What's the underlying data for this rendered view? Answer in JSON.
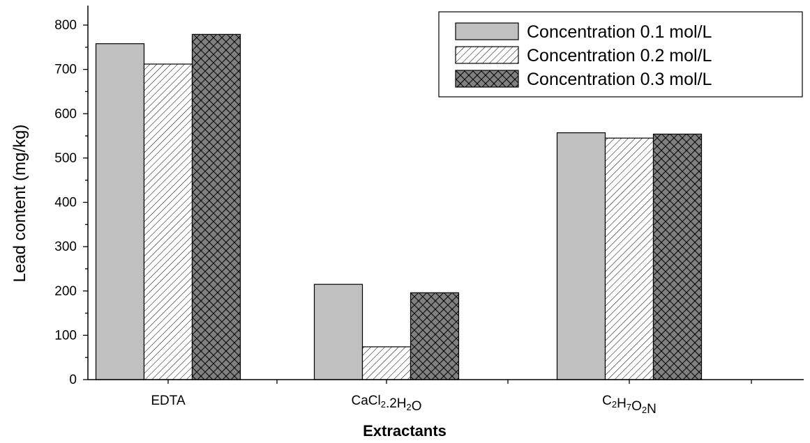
{
  "chart_data": {
    "type": "bar",
    "title": "",
    "xlabel": "Extractants",
    "ylabel": "Lead content (mg/kg)",
    "ylim": [
      0,
      850
    ],
    "yticks": [
      0,
      100,
      200,
      300,
      400,
      500,
      600,
      700,
      800
    ],
    "grid": false,
    "legend_position": "top-right",
    "categories": [
      {
        "label": "EDTA",
        "parts": [
          {
            "t": "EDTA",
            "s": ""
          }
        ]
      },
      {
        "label": "CaCl2.2H2O",
        "parts": [
          {
            "t": "CaCl",
            "s": ""
          },
          {
            "t": "2",
            "s": "sub"
          },
          {
            "t": ".2H",
            "s": ""
          },
          {
            "t": "2",
            "s": "sub"
          },
          {
            "t": "O",
            "s": ""
          }
        ]
      },
      {
        "label": "C2H7O2N",
        "parts": [
          {
            "t": "C",
            "s": ""
          },
          {
            "t": "2",
            "s": "sub"
          },
          {
            "t": "H",
            "s": ""
          },
          {
            "t": "7",
            "s": "sub"
          },
          {
            "t": "O",
            "s": ""
          },
          {
            "t": "2",
            "s": "sub"
          },
          {
            "t": "N",
            "s": ""
          }
        ]
      }
    ],
    "series": [
      {
        "name": "Concentration 0.1 mol/L",
        "values": [
          758,
          215,
          557
        ],
        "pattern": "solid",
        "color": "#c0c0c0"
      },
      {
        "name": "Concentration 0.2 mol/L",
        "values": [
          712,
          74,
          545
        ],
        "pattern": "diagonal-hatch",
        "color": "#ffffff"
      },
      {
        "name": "Concentration 0.3 mol/L",
        "values": [
          779,
          196,
          554
        ],
        "pattern": "crosshatch",
        "color": "#808080"
      }
    ]
  }
}
